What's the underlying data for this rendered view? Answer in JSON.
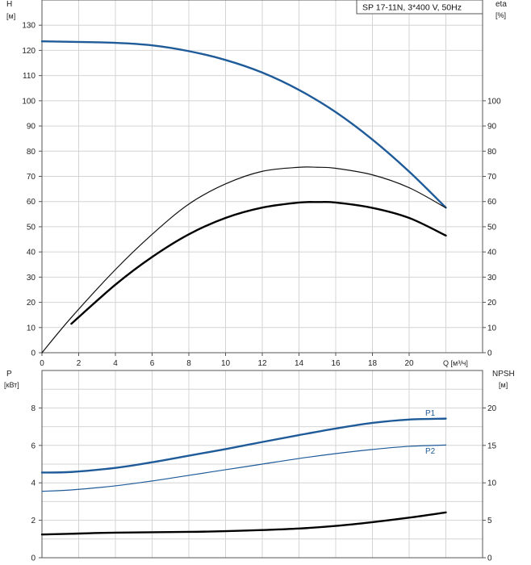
{
  "chart_data": [
    {
      "type": "line",
      "title": "SP 17-11N, 3*400 V, 50Hz",
      "left_axis": {
        "label": "H",
        "unit": "[м]",
        "range": [
          0,
          140
        ],
        "ticks": [
          "0",
          "10",
          "20",
          "30",
          "40",
          "50",
          "60",
          "70",
          "80",
          "90",
          "100",
          "110",
          "120",
          "130"
        ]
      },
      "right_axis": {
        "label": "eta",
        "unit": "[%]",
        "range": [
          0,
          140
        ],
        "ticks": [
          "0",
          "10",
          "20",
          "30",
          "40",
          "50",
          "60",
          "70",
          "80",
          "90",
          "100"
        ]
      },
      "x_axis": {
        "label": "Q [м³/ч]",
        "range": [
          0,
          24
        ],
        "ticks": [
          "0",
          "2",
          "4",
          "6",
          "8",
          "10",
          "12",
          "14",
          "16",
          "18",
          "20"
        ]
      },
      "grid": true,
      "series": [
        {
          "key": "H",
          "color": "#1f5b99",
          "width": 2.4,
          "axis": "left",
          "points": [
            [
              0,
              123.6
            ],
            [
              1.6,
              123.4
            ],
            [
              4,
              123
            ],
            [
              6,
              122
            ],
            [
              8,
              119.7
            ],
            [
              10,
              116.2
            ],
            [
              12,
              111.2
            ],
            [
              14,
              104.3
            ],
            [
              16,
              95.5
            ],
            [
              18,
              84.6
            ],
            [
              20,
              71.9
            ],
            [
              22,
              57.6
            ]
          ]
        },
        {
          "key": "eta_pump",
          "color": "#111111",
          "width": 1.2,
          "axis": "right",
          "points": [
            [
              0,
              0
            ],
            [
              1.6,
              14
            ],
            [
              4,
              33
            ],
            [
              6,
              47
            ],
            [
              8,
              59
            ],
            [
              10,
              67
            ],
            [
              12,
              72
            ],
            [
              14,
              73.6
            ],
            [
              15,
              73.6
            ],
            [
              16,
              73.2
            ],
            [
              18,
              70.6
            ],
            [
              20,
              65.5
            ],
            [
              22,
              57.5
            ]
          ]
        },
        {
          "key": "eta_total",
          "color": "#000000",
          "width": 2.4,
          "axis": "right",
          "points": [
            [
              1.6,
              11.5
            ],
            [
              4,
              27
            ],
            [
              6,
              38
            ],
            [
              8,
              47
            ],
            [
              10,
              53.5
            ],
            [
              12,
              57.6
            ],
            [
              14,
              59.6
            ],
            [
              15,
              59.8
            ],
            [
              16,
              59.6
            ],
            [
              18,
              57.5
            ],
            [
              20,
              53.5
            ],
            [
              22,
              46.5
            ]
          ]
        }
      ]
    },
    {
      "type": "line",
      "left_axis": {
        "label": "P",
        "unit": "[кВт]",
        "range": [
          0,
          10
        ],
        "ticks": [
          "0",
          "2",
          "4",
          "6",
          "8"
        ]
      },
      "right_axis": {
        "label": "NPSH",
        "unit": "[м]",
        "range": [
          0,
          25
        ],
        "ticks": [
          "0",
          "5",
          "10",
          "15",
          "20"
        ]
      },
      "x_axis": {
        "range": [
          0,
          24
        ]
      },
      "grid": true,
      "series": [
        {
          "name": "P1",
          "color": "#1f5b99",
          "width": 2.4,
          "axis": "left",
          "points": [
            [
              0,
              4.55
            ],
            [
              1.6,
              4.58
            ],
            [
              4,
              4.8
            ],
            [
              6,
              5.1
            ],
            [
              8,
              5.45
            ],
            [
              10,
              5.8
            ],
            [
              12,
              6.18
            ],
            [
              14,
              6.55
            ],
            [
              16,
              6.9
            ],
            [
              18,
              7.2
            ],
            [
              20,
              7.38
            ],
            [
              22,
              7.43
            ]
          ]
        },
        {
          "name": "P2",
          "color": "#1f5b99",
          "width": 1.2,
          "axis": "left",
          "points": [
            [
              0,
              3.55
            ],
            [
              1.6,
              3.62
            ],
            [
              4,
              3.84
            ],
            [
              6,
              4.1
            ],
            [
              8,
              4.4
            ],
            [
              10,
              4.7
            ],
            [
              12,
              5.0
            ],
            [
              14,
              5.3
            ],
            [
              16,
              5.56
            ],
            [
              18,
              5.78
            ],
            [
              20,
              5.95
            ],
            [
              22,
              6.02
            ]
          ]
        },
        {
          "key": "NPSH",
          "color": "#000000",
          "width": 2.4,
          "axis": "right",
          "points": [
            [
              0,
              3.1
            ],
            [
              1.6,
              3.2
            ],
            [
              4,
              3.35
            ],
            [
              8,
              3.45
            ],
            [
              10,
              3.55
            ],
            [
              12,
              3.7
            ],
            [
              14,
              3.9
            ],
            [
              16,
              4.25
            ],
            [
              18,
              4.75
            ],
            [
              20,
              5.35
            ],
            [
              22,
              6.05
            ]
          ]
        }
      ]
    }
  ]
}
